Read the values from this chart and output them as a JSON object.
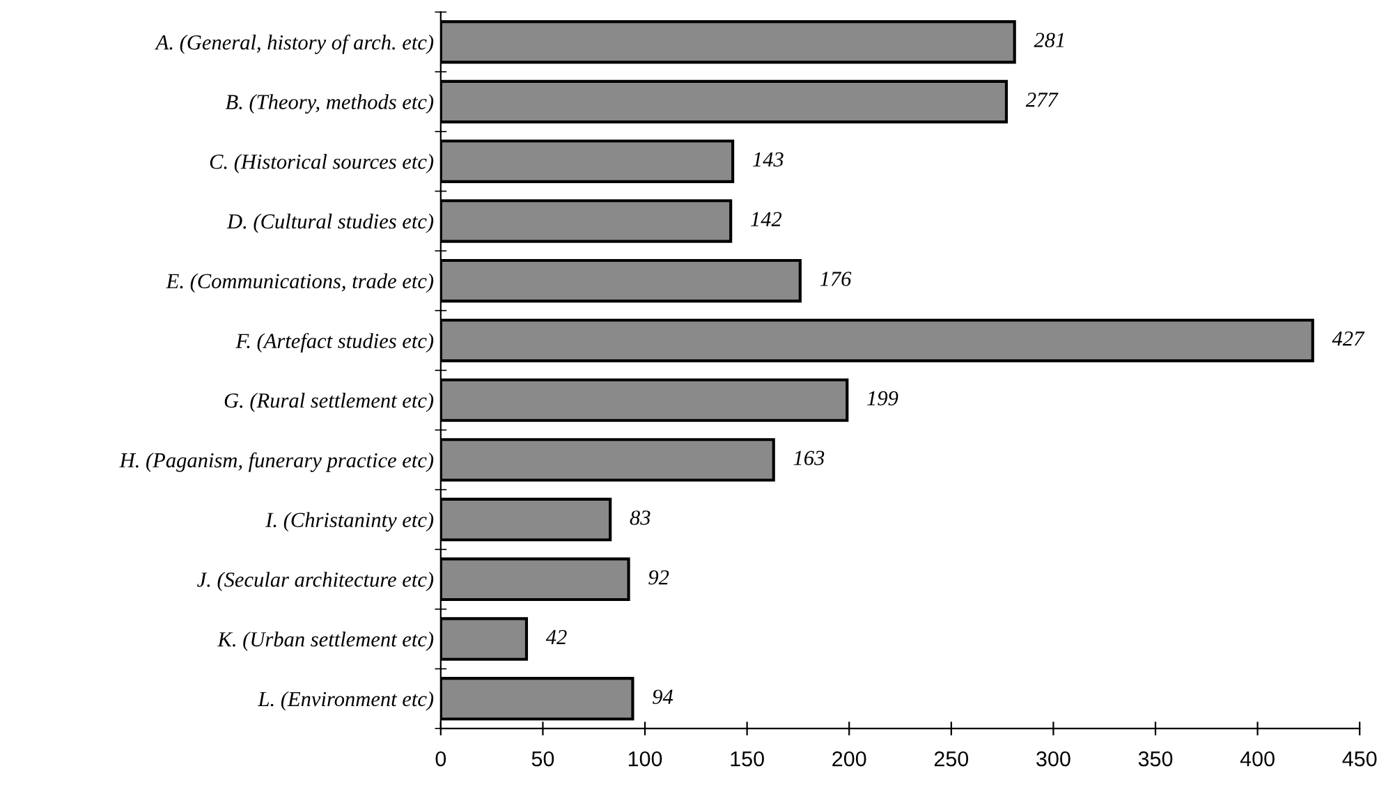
{
  "chart_data": {
    "type": "bar",
    "orientation": "horizontal",
    "categories": [
      "A. (General, history of arch. etc)",
      "B. (Theory, methods etc)",
      "C. (Historical sources etc)",
      "D. (Cultural studies etc)",
      "E. (Communications, trade etc)",
      "F. (Artefact studies etc)",
      "G. (Rural settlement etc)",
      "H. (Paganism, funerary practice etc)",
      "I. (Christaninty etc)",
      "J. (Secular architecture etc)",
      "K. (Urban settlement etc)",
      "L. (Environment etc)"
    ],
    "values": [
      281,
      277,
      143,
      142,
      176,
      427,
      199,
      163,
      83,
      92,
      42,
      94
    ],
    "color": "#8a8a8a",
    "xlim": [
      0,
      450
    ],
    "xticks": [
      0,
      50,
      100,
      150,
      200,
      250,
      300,
      350,
      400,
      450
    ],
    "data_labels": true,
    "grid": false,
    "legend": false
  }
}
